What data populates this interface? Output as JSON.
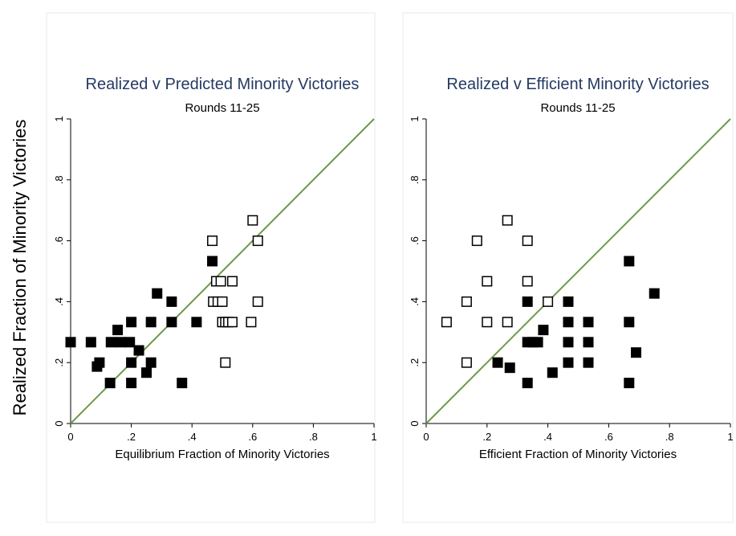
{
  "figure": {
    "ylabel": "Realized Fraction of Minority Victories"
  },
  "colors": {
    "title": "#243a63",
    "reference_line": "#6b9a4a",
    "axis": "#000000",
    "panel_border": "#e6e6e6",
    "marker": "#000000"
  },
  "chart_data": [
    {
      "type": "scatter",
      "title": "Realized v Predicted Minority Victories",
      "subtitle": "Rounds 11-25",
      "xlabel": "Equilibrium Fraction of Minority Victories",
      "ylabel": "Realized Fraction of Minority Victories",
      "xlim": [
        0,
        1
      ],
      "ylim": [
        0,
        1
      ],
      "xticks": [
        "0",
        ".2",
        ".4",
        ".6",
        ".8",
        "1"
      ],
      "yticks": [
        "0",
        ".2",
        ".4",
        ".6",
        ".8",
        "1"
      ],
      "grid": false,
      "reference_line": "y = x",
      "series": [
        {
          "marker": "filled-square",
          "points": [
            [
              0.0,
              0.267
            ],
            [
              0.067,
              0.267
            ],
            [
              0.087,
              0.187
            ],
            [
              0.095,
              0.2
            ],
            [
              0.13,
              0.133
            ],
            [
              0.133,
              0.267
            ],
            [
              0.155,
              0.307
            ],
            [
              0.165,
              0.267
            ],
            [
              0.195,
              0.267
            ],
            [
              0.2,
              0.333
            ],
            [
              0.2,
              0.2
            ],
            [
              0.2,
              0.133
            ],
            [
              0.225,
              0.24
            ],
            [
              0.25,
              0.167
            ],
            [
              0.265,
              0.2
            ],
            [
              0.265,
              0.333
            ],
            [
              0.285,
              0.427
            ],
            [
              0.333,
              0.4
            ],
            [
              0.333,
              0.333
            ],
            [
              0.367,
              0.133
            ],
            [
              0.415,
              0.333
            ],
            [
              0.467,
              0.533
            ]
          ]
        },
        {
          "marker": "hollow-square",
          "points": [
            [
              0.467,
              0.6
            ],
            [
              0.47,
              0.4
            ],
            [
              0.48,
              0.467
            ],
            [
              0.485,
              0.4
            ],
            [
              0.495,
              0.467
            ],
            [
              0.5,
              0.4
            ],
            [
              0.5,
              0.333
            ],
            [
              0.51,
              0.333
            ],
            [
              0.52,
              0.333
            ],
            [
              0.51,
              0.2
            ],
            [
              0.533,
              0.333
            ],
            [
              0.533,
              0.467
            ],
            [
              0.595,
              0.333
            ],
            [
              0.6,
              0.667
            ],
            [
              0.617,
              0.6
            ],
            [
              0.617,
              0.4
            ]
          ]
        }
      ]
    },
    {
      "type": "scatter",
      "title": "Realized v Efficient Minority Victories",
      "subtitle": "Rounds 11-25",
      "xlabel": "Efficient Fraction of Minority Victories",
      "ylabel": "Realized Fraction of Minority Victories",
      "xlim": [
        0,
        1
      ],
      "ylim": [
        0,
        1
      ],
      "xticks": [
        "0",
        ".2",
        ".4",
        ".6",
        ".8",
        "1"
      ],
      "yticks": [
        "0",
        ".2",
        ".4",
        ".6",
        ".8",
        "1"
      ],
      "grid": false,
      "reference_line": "y = x",
      "series": [
        {
          "marker": "filled-square",
          "points": [
            [
              0.235,
              0.2
            ],
            [
              0.275,
              0.183
            ],
            [
              0.333,
              0.4
            ],
            [
              0.333,
              0.267
            ],
            [
              0.333,
              0.133
            ],
            [
              0.35,
              0.267
            ],
            [
              0.367,
              0.267
            ],
            [
              0.385,
              0.307
            ],
            [
              0.415,
              0.167
            ],
            [
              0.467,
              0.4
            ],
            [
              0.467,
              0.333
            ],
            [
              0.467,
              0.267
            ],
            [
              0.467,
              0.2
            ],
            [
              0.533,
              0.333
            ],
            [
              0.533,
              0.267
            ],
            [
              0.533,
              0.2
            ],
            [
              0.667,
              0.533
            ],
            [
              0.667,
              0.333
            ],
            [
              0.667,
              0.133
            ],
            [
              0.69,
              0.233
            ],
            [
              0.75,
              0.427
            ]
          ]
        },
        {
          "marker": "hollow-square",
          "points": [
            [
              0.067,
              0.333
            ],
            [
              0.133,
              0.4
            ],
            [
              0.133,
              0.2
            ],
            [
              0.167,
              0.6
            ],
            [
              0.2,
              0.467
            ],
            [
              0.2,
              0.333
            ],
            [
              0.267,
              0.667
            ],
            [
              0.267,
              0.333
            ],
            [
              0.333,
              0.6
            ],
            [
              0.333,
              0.467
            ],
            [
              0.4,
              0.4
            ]
          ]
        }
      ]
    }
  ]
}
